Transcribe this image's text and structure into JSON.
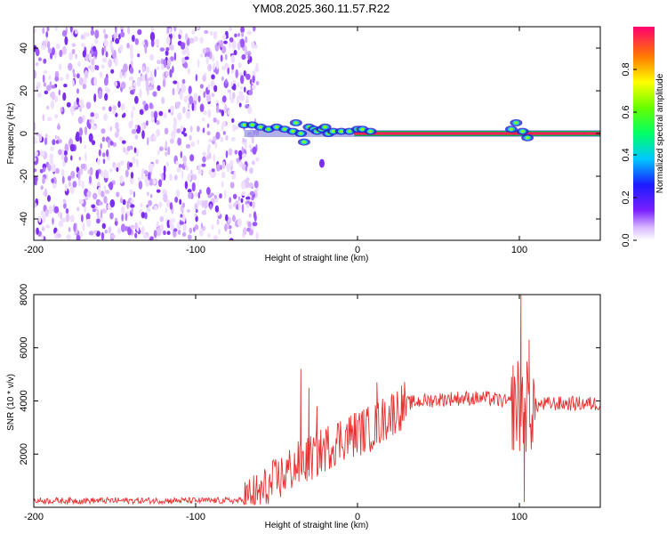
{
  "figure": {
    "title": "YM08.2025.360.11.57.R22"
  },
  "chart_data": [
    {
      "type": "heatmap",
      "name": "spectrogram",
      "xlabel": "Height of straight line (km)",
      "ylabel": "Frequency (Hz)",
      "xlim": [
        -200,
        150
      ],
      "ylim": [
        -50,
        50
      ],
      "x_ticks": [
        -200,
        -100,
        0,
        100
      ],
      "x_tick_labels": [
        "-200",
        "-100",
        "0",
        "100"
      ],
      "y_ticks": [
        -40,
        -20,
        0,
        20,
        40
      ],
      "y_tick_labels": [
        "-40",
        "-20",
        "0",
        "20",
        "40"
      ],
      "noise_region_x": [
        -200,
        -65
      ],
      "signal_line_freq": 0,
      "signal_blob_points": [
        {
          "x": -70,
          "y": 4
        },
        {
          "x": -65,
          "y": 4
        },
        {
          "x": -60,
          "y": 3
        },
        {
          "x": -55,
          "y": 2
        },
        {
          "x": -50,
          "y": 3
        },
        {
          "x": -45,
          "y": 2
        },
        {
          "x": -40,
          "y": 1
        },
        {
          "x": -38,
          "y": 5
        },
        {
          "x": -35,
          "y": 0
        },
        {
          "x": -33,
          "y": -4
        },
        {
          "x": -30,
          "y": 3
        },
        {
          "x": -27,
          "y": 2
        },
        {
          "x": -25,
          "y": 1
        },
        {
          "x": -22,
          "y": 2
        },
        {
          "x": -20,
          "y": 3
        },
        {
          "x": -18,
          "y": 0
        },
        {
          "x": -15,
          "y": 1
        },
        {
          "x": -10,
          "y": 1
        },
        {
          "x": -5,
          "y": 1
        },
        {
          "x": 0,
          "y": 2
        },
        {
          "x": 3,
          "y": 2
        },
        {
          "x": 8,
          "y": 1
        },
        {
          "x": 95,
          "y": 2
        },
        {
          "x": 98,
          "y": 5
        },
        {
          "x": 102,
          "y": 1
        },
        {
          "x": 105,
          "y": -2
        }
      ],
      "outlier_points": [
        {
          "x": -22,
          "y": -14
        }
      ],
      "colorbar": {
        "label": "Normalized spectral amplitude",
        "range": [
          0,
          1
        ],
        "ticks": [
          0.0,
          0.2,
          0.4,
          0.6,
          0.8
        ],
        "tick_labels": [
          "0.0",
          "0.2",
          "0.4",
          "0.6",
          "0.8"
        ]
      }
    },
    {
      "type": "line",
      "name": "snr",
      "xlabel": "Height of straight line (km)",
      "ylabel": "SNR (10 * v/v)",
      "xlim": [
        -200,
        150
      ],
      "ylim": [
        0,
        8000
      ],
      "x_ticks": [
        -200,
        -100,
        0,
        100
      ],
      "x_tick_labels": [
        "-200",
        "-100",
        "0",
        "100"
      ],
      "y_ticks": [
        2000,
        4000,
        6000,
        8000
      ],
      "y_tick_labels": [
        "2000",
        "4000",
        "6000",
        "8000"
      ],
      "color": "#e53333",
      "trend": [
        {
          "x": -200,
          "y": 250
        },
        {
          "x": -70,
          "y": 250
        },
        {
          "x": -60,
          "y": 500
        },
        {
          "x": -50,
          "y": 1000
        },
        {
          "x": -40,
          "y": 1500
        },
        {
          "x": -30,
          "y": 1800
        },
        {
          "x": -20,
          "y": 2200
        },
        {
          "x": -10,
          "y": 2600
        },
        {
          "x": 0,
          "y": 2800
        },
        {
          "x": 10,
          "y": 3000
        },
        {
          "x": 20,
          "y": 3500
        },
        {
          "x": 30,
          "y": 3900
        },
        {
          "x": 40,
          "y": 4000
        },
        {
          "x": 60,
          "y": 4100
        },
        {
          "x": 80,
          "y": 4100
        },
        {
          "x": 90,
          "y": 4000
        },
        {
          "x": 95,
          "y": 3900
        },
        {
          "x": 100,
          "y": 3700
        },
        {
          "x": 105,
          "y": 3800
        },
        {
          "x": 120,
          "y": 3900
        },
        {
          "x": 150,
          "y": 3900
        }
      ],
      "peaks": [
        {
          "x": -35,
          "y": 5200
        },
        {
          "x": -30,
          "y": 4500
        },
        {
          "x": -25,
          "y": 3800
        },
        {
          "x": 12,
          "y": 4700
        },
        {
          "x": 101,
          "y": 8000
        },
        {
          "x": 103,
          "y": 200
        },
        {
          "x": 106,
          "y": 6300
        },
        {
          "x": 99,
          "y": 5500
        }
      ]
    }
  ]
}
